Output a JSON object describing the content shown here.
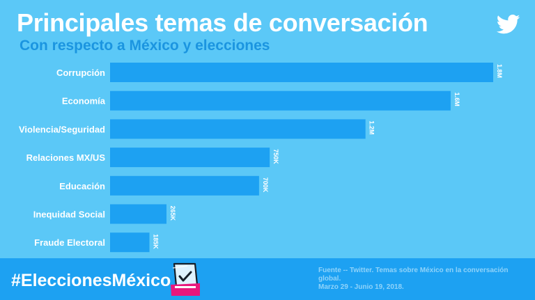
{
  "header": {
    "title": "Principales temas de conversación",
    "subtitle": "Con respecto a México y elecciones"
  },
  "icons": {
    "brand": "twitter-bird-icon",
    "ballot": "ballot-box-icon"
  },
  "colors": {
    "background": "#5bc8f7",
    "bar": "#1da1f2",
    "subtitle": "#1b95e0",
    "footer": "#1da1f2",
    "ballot_accent": "#e8177d"
  },
  "chart_data": {
    "type": "bar",
    "orientation": "horizontal",
    "categories": [
      "Corrupción",
      "Economía",
      "Violencia/Seguridad",
      "Relaciones MX/US",
      "Educación",
      "Inequidad Social",
      "Fraude Electoral"
    ],
    "values": [
      1800000,
      1600000,
      1200000,
      750000,
      700000,
      265000,
      185000
    ],
    "value_labels": [
      "1.8M",
      "1.6M",
      "1.2M",
      "750K",
      "700K",
      "265K",
      "185K"
    ],
    "xlim": [
      0,
      1800000
    ],
    "grid": false,
    "legend": "none"
  },
  "footer": {
    "hashtag": "#EleccionesMéxico",
    "source_line1": "Fuente -- Twitter. Temas sobre México en la conversación",
    "source_line2": "global.",
    "source_line3": "Marzo 29 - Junio 19, 2018."
  }
}
